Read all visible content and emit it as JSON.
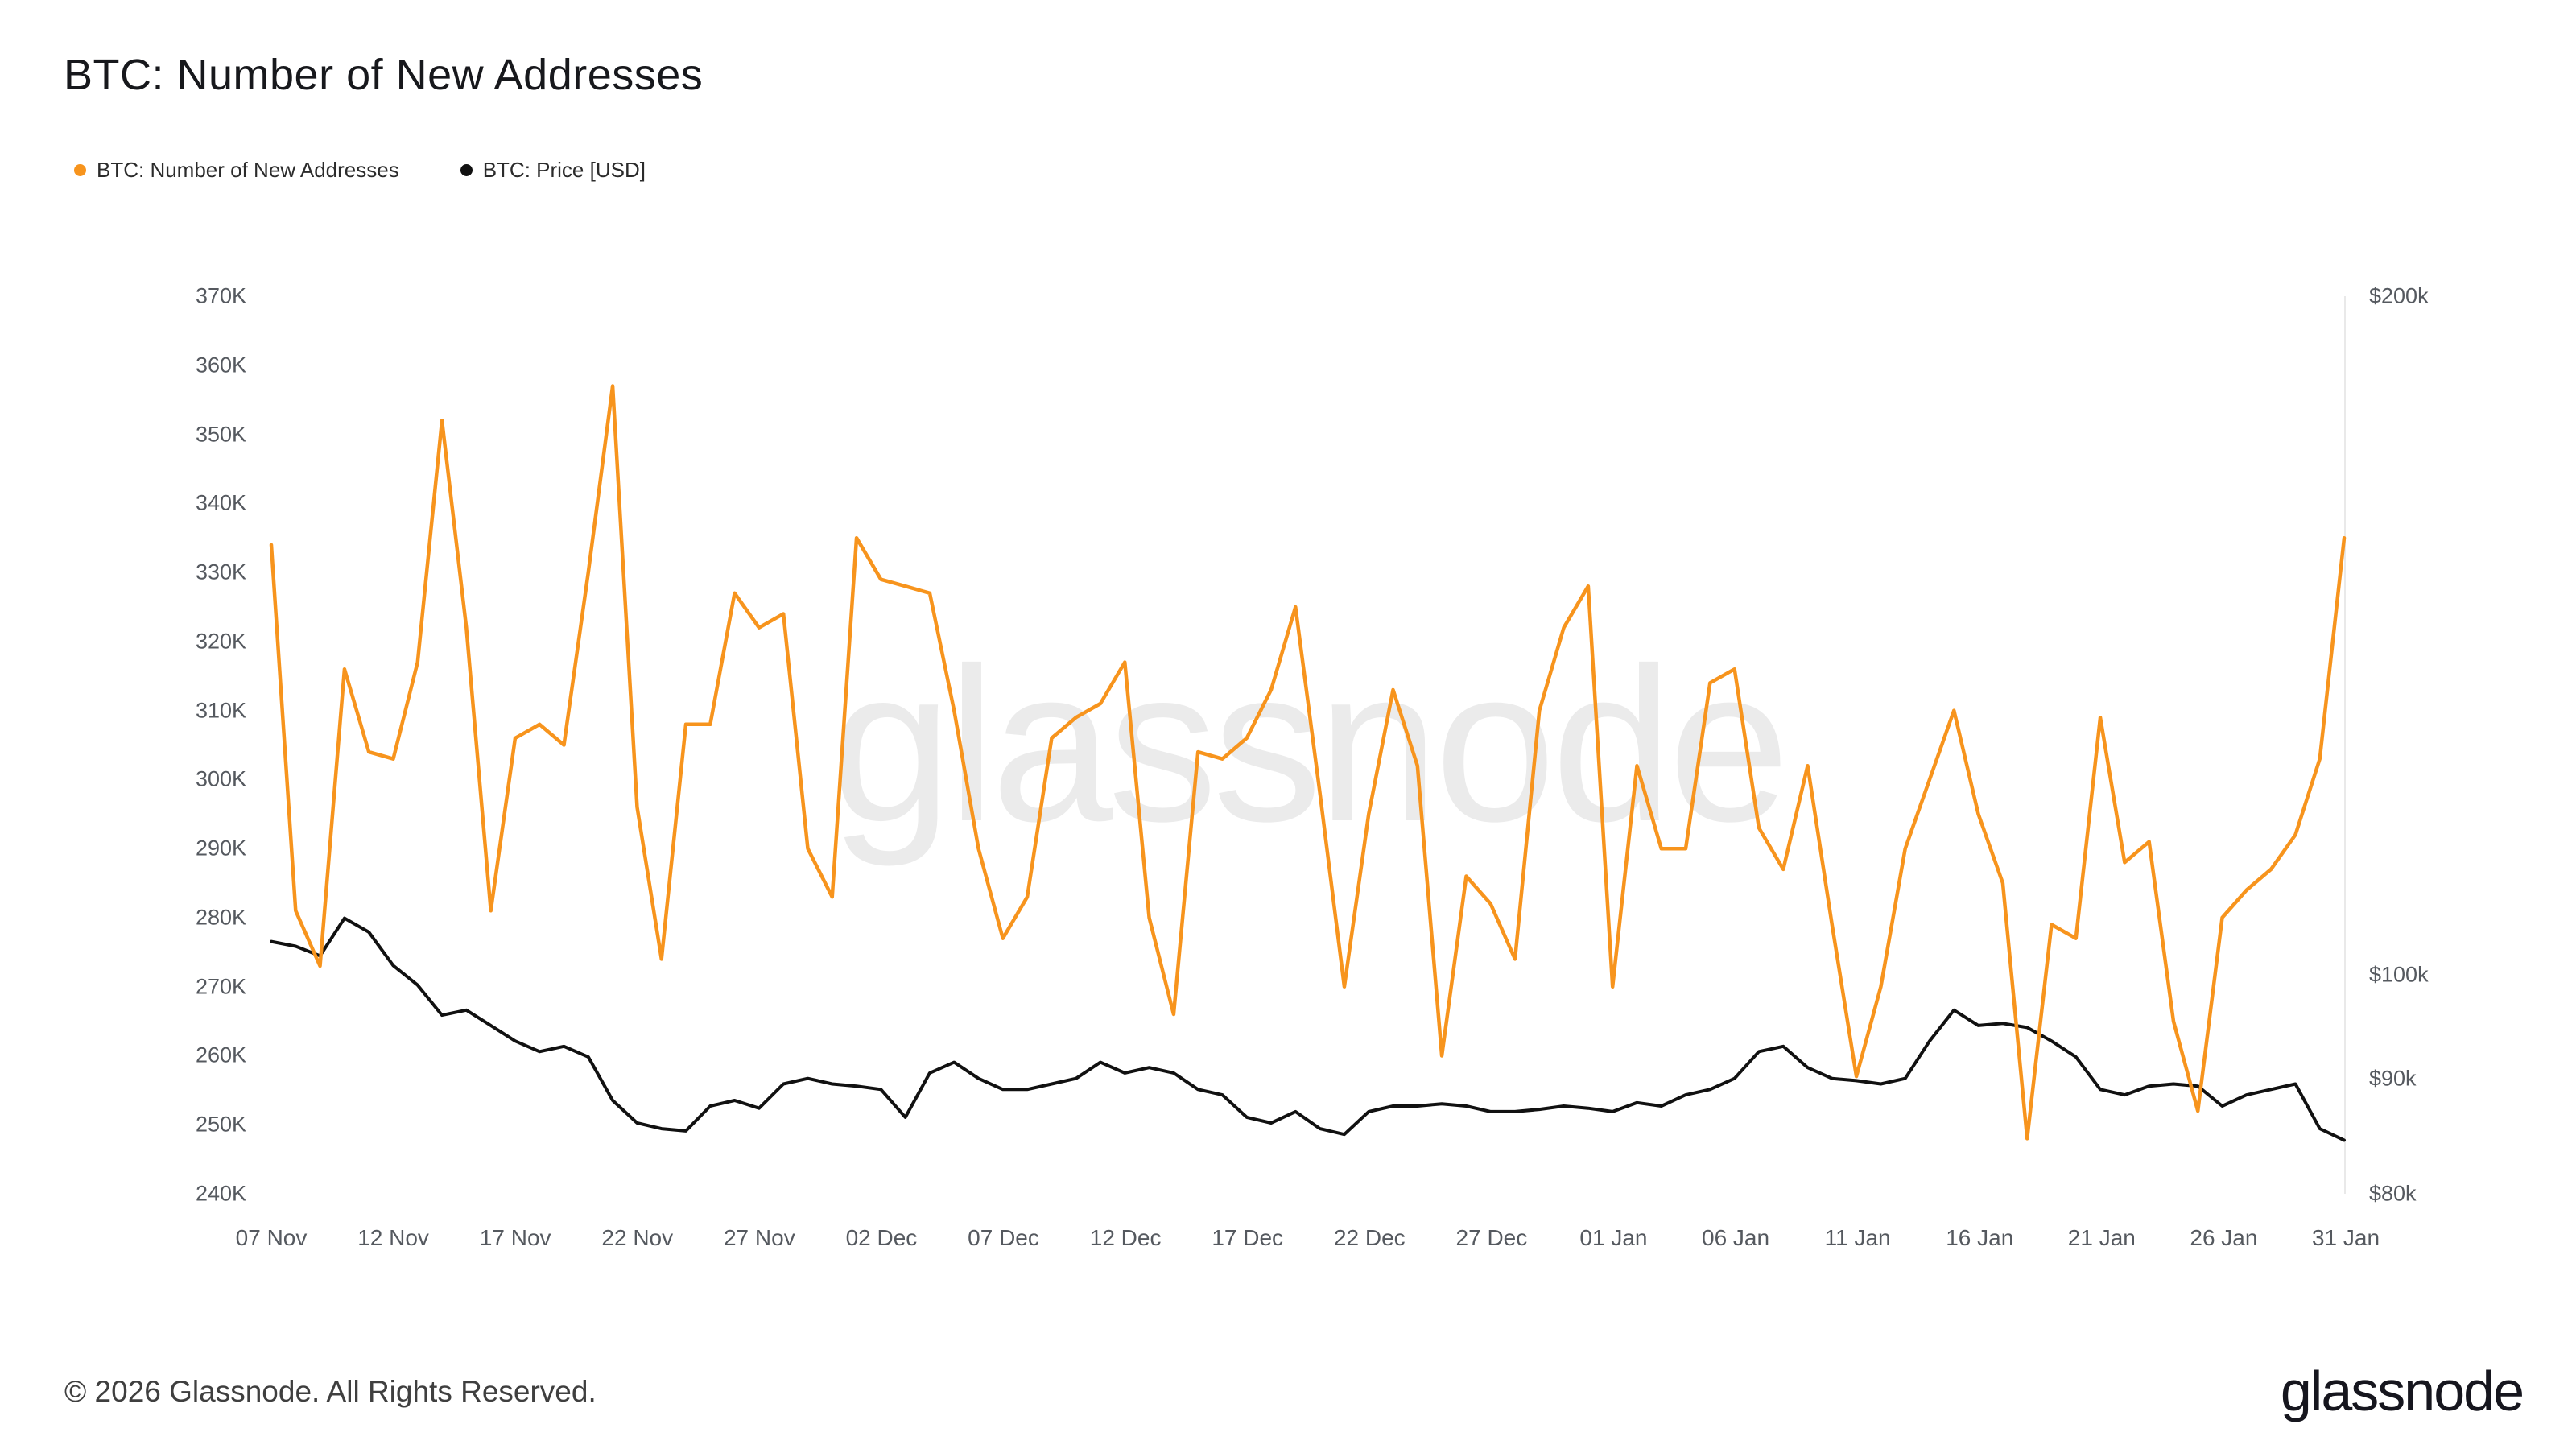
{
  "page": {
    "title": "BTC: Number of New Addresses",
    "footer_copyright": "© 2026 Glassnode. All Rights Reserved.",
    "brand_logo_text": "glassnode",
    "watermark_text": "glassnode"
  },
  "legend": {
    "items": [
      {
        "label": "BTC: Number of New Addresses",
        "color": "#f7941d"
      },
      {
        "label": "BTC: Price [USD]",
        "color": "#111111"
      }
    ]
  },
  "chart_data": {
    "type": "line",
    "title": "BTC: Number of New Addresses",
    "x_count": 86,
    "x_range": [
      "07 Nov",
      "31 Jan"
    ],
    "grid": "off",
    "legend_position": "top-left",
    "x_ticks": [
      {
        "i": 0,
        "label": "07 Nov"
      },
      {
        "i": 5,
        "label": "12 Nov"
      },
      {
        "i": 10,
        "label": "17 Nov"
      },
      {
        "i": 15,
        "label": "22 Nov"
      },
      {
        "i": 20,
        "label": "27 Nov"
      },
      {
        "i": 25,
        "label": "02 Dec"
      },
      {
        "i": 30,
        "label": "07 Dec"
      },
      {
        "i": 35,
        "label": "12 Dec"
      },
      {
        "i": 40,
        "label": "17 Dec"
      },
      {
        "i": 45,
        "label": "22 Dec"
      },
      {
        "i": 50,
        "label": "27 Dec"
      },
      {
        "i": 55,
        "label": "01 Jan"
      },
      {
        "i": 60,
        "label": "06 Jan"
      },
      {
        "i": 65,
        "label": "11 Jan"
      },
      {
        "i": 70,
        "label": "16 Jan"
      },
      {
        "i": 75,
        "label": "21 Jan"
      },
      {
        "i": 80,
        "label": "26 Jan"
      },
      {
        "i": 85,
        "label": "31 Jan"
      }
    ],
    "left_axis": {
      "min": 240,
      "max": 370,
      "scale": "linear",
      "unit": "thousand addresses",
      "ticks": [
        {
          "value": 240,
          "label": "240K"
        },
        {
          "value": 250,
          "label": "250K"
        },
        {
          "value": 260,
          "label": "260K"
        },
        {
          "value": 270,
          "label": "270K"
        },
        {
          "value": 280,
          "label": "280K"
        },
        {
          "value": 290,
          "label": "290K"
        },
        {
          "value": 300,
          "label": "300K"
        },
        {
          "value": 310,
          "label": "310K"
        },
        {
          "value": 320,
          "label": "320K"
        },
        {
          "value": 330,
          "label": "330K"
        },
        {
          "value": 340,
          "label": "340K"
        },
        {
          "value": 350,
          "label": "350K"
        },
        {
          "value": 360,
          "label": "360K"
        },
        {
          "value": 370,
          "label": "370K"
        }
      ]
    },
    "right_axis": {
      "min": 80,
      "max": 200,
      "scale": "log",
      "unit": "thousand USD",
      "ticks": [
        {
          "value": 200,
          "label": "$200k"
        },
        {
          "value": 100,
          "label": "$100k"
        },
        {
          "value": 90,
          "label": "$90k"
        },
        {
          "value": 80,
          "label": "$80k"
        }
      ]
    },
    "series": [
      {
        "id": "new-addresses",
        "name": "BTC: Number of New Addresses",
        "axis": "left",
        "color": "#f7941d",
        "width": 4.5,
        "unit": "thousand addresses",
        "values": [
          334,
          281,
          273,
          316,
          304,
          303,
          317,
          352,
          322,
          281,
          306,
          308,
          305,
          330,
          357,
          296,
          274,
          308,
          308,
          327,
          322,
          324,
          290,
          283,
          335,
          329,
          328,
          327,
          310,
          290,
          277,
          283,
          306,
          309,
          311,
          317,
          280,
          266,
          304,
          303,
          306,
          313,
          325,
          298,
          270,
          295,
          313,
          302,
          260,
          286,
          282,
          274,
          310,
          322,
          328,
          270,
          302,
          290,
          290,
          314,
          316,
          293,
          287,
          302,
          279,
          257,
          270,
          290,
          300,
          310,
          295,
          285,
          248,
          279,
          277,
          309,
          288,
          291,
          265,
          252,
          280,
          284,
          287,
          292,
          303,
          335
        ]
      },
      {
        "id": "price-usd",
        "name": "BTC: Price [USD]",
        "axis": "right",
        "color": "#111111",
        "width": 4,
        "unit": "thousand USD",
        "values": [
          103.5,
          103,
          102,
          106,
          104.5,
          101,
          99,
          96,
          96.5,
          95,
          93.5,
          92.5,
          93,
          92,
          88,
          86,
          85.5,
          85.3,
          87.5,
          88,
          87.3,
          89.5,
          90,
          89.5,
          89.3,
          89,
          86.5,
          90.5,
          91.5,
          90,
          89,
          89,
          89.5,
          90,
          91.5,
          90.5,
          91,
          90.5,
          89,
          88.5,
          86.5,
          86,
          87,
          85.5,
          85,
          87,
          87.5,
          87.5,
          87.7,
          87.5,
          87,
          87,
          87.2,
          87.5,
          87.3,
          87,
          87.8,
          87.5,
          88.5,
          89,
          90,
          92.5,
          93,
          91,
          90,
          89.8,
          89.5,
          90,
          93.5,
          96.5,
          95,
          95.2,
          94.8,
          93.5,
          92,
          89,
          88.5,
          89.3,
          89.5,
          89.3,
          87.5,
          88.5,
          89,
          89.5,
          85.5,
          84.5
        ]
      }
    ]
  }
}
